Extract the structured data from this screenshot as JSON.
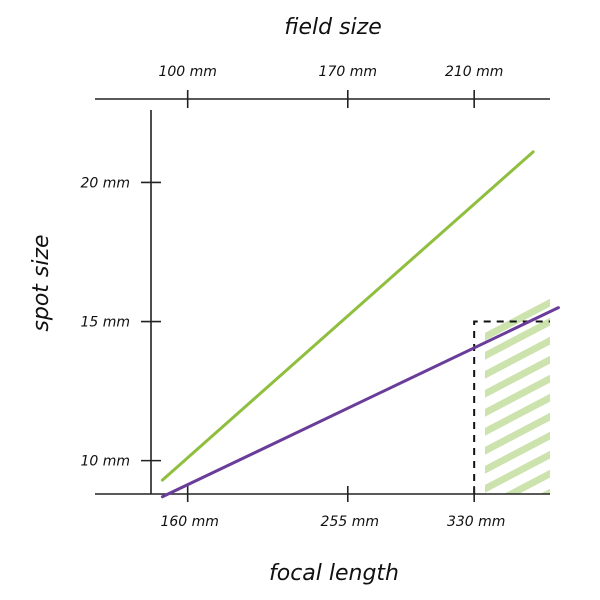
{
  "chart_data": {
    "type": "line",
    "xlabel": "focal length",
    "x2label": "field size",
    "ylabel": "spot size",
    "x_ticks": [
      {
        "value": 160,
        "label": "160 mm"
      },
      {
        "value": 255,
        "label": "255 mm"
      },
      {
        "value": 330,
        "label": "330 mm"
      }
    ],
    "x2_ticks": [
      {
        "value": 160,
        "label": "100 mm"
      },
      {
        "value": 255,
        "label": "170 mm"
      },
      {
        "value": 330,
        "label": "210 mm"
      }
    ],
    "y_ticks": [
      {
        "value": 10,
        "label": "10 mm"
      },
      {
        "value": 15,
        "label": "15 mm"
      },
      {
        "value": 20,
        "label": "20 mm"
      }
    ],
    "xlim": [
      105,
      375
    ],
    "ylim": [
      8.8,
      23
    ],
    "series": [
      {
        "color": "#8fbf3f",
        "x": [
          145,
          365
        ],
        "y": [
          9.3,
          21.1
        ]
      },
      {
        "color": "#6a3d9a",
        "x": [
          145,
          380
        ],
        "y": [
          8.7,
          15.5
        ]
      }
    ],
    "shaded_region": {
      "x_from": 330,
      "y_to": 15,
      "color": "#c5dfa0",
      "border": "dashed"
    }
  }
}
